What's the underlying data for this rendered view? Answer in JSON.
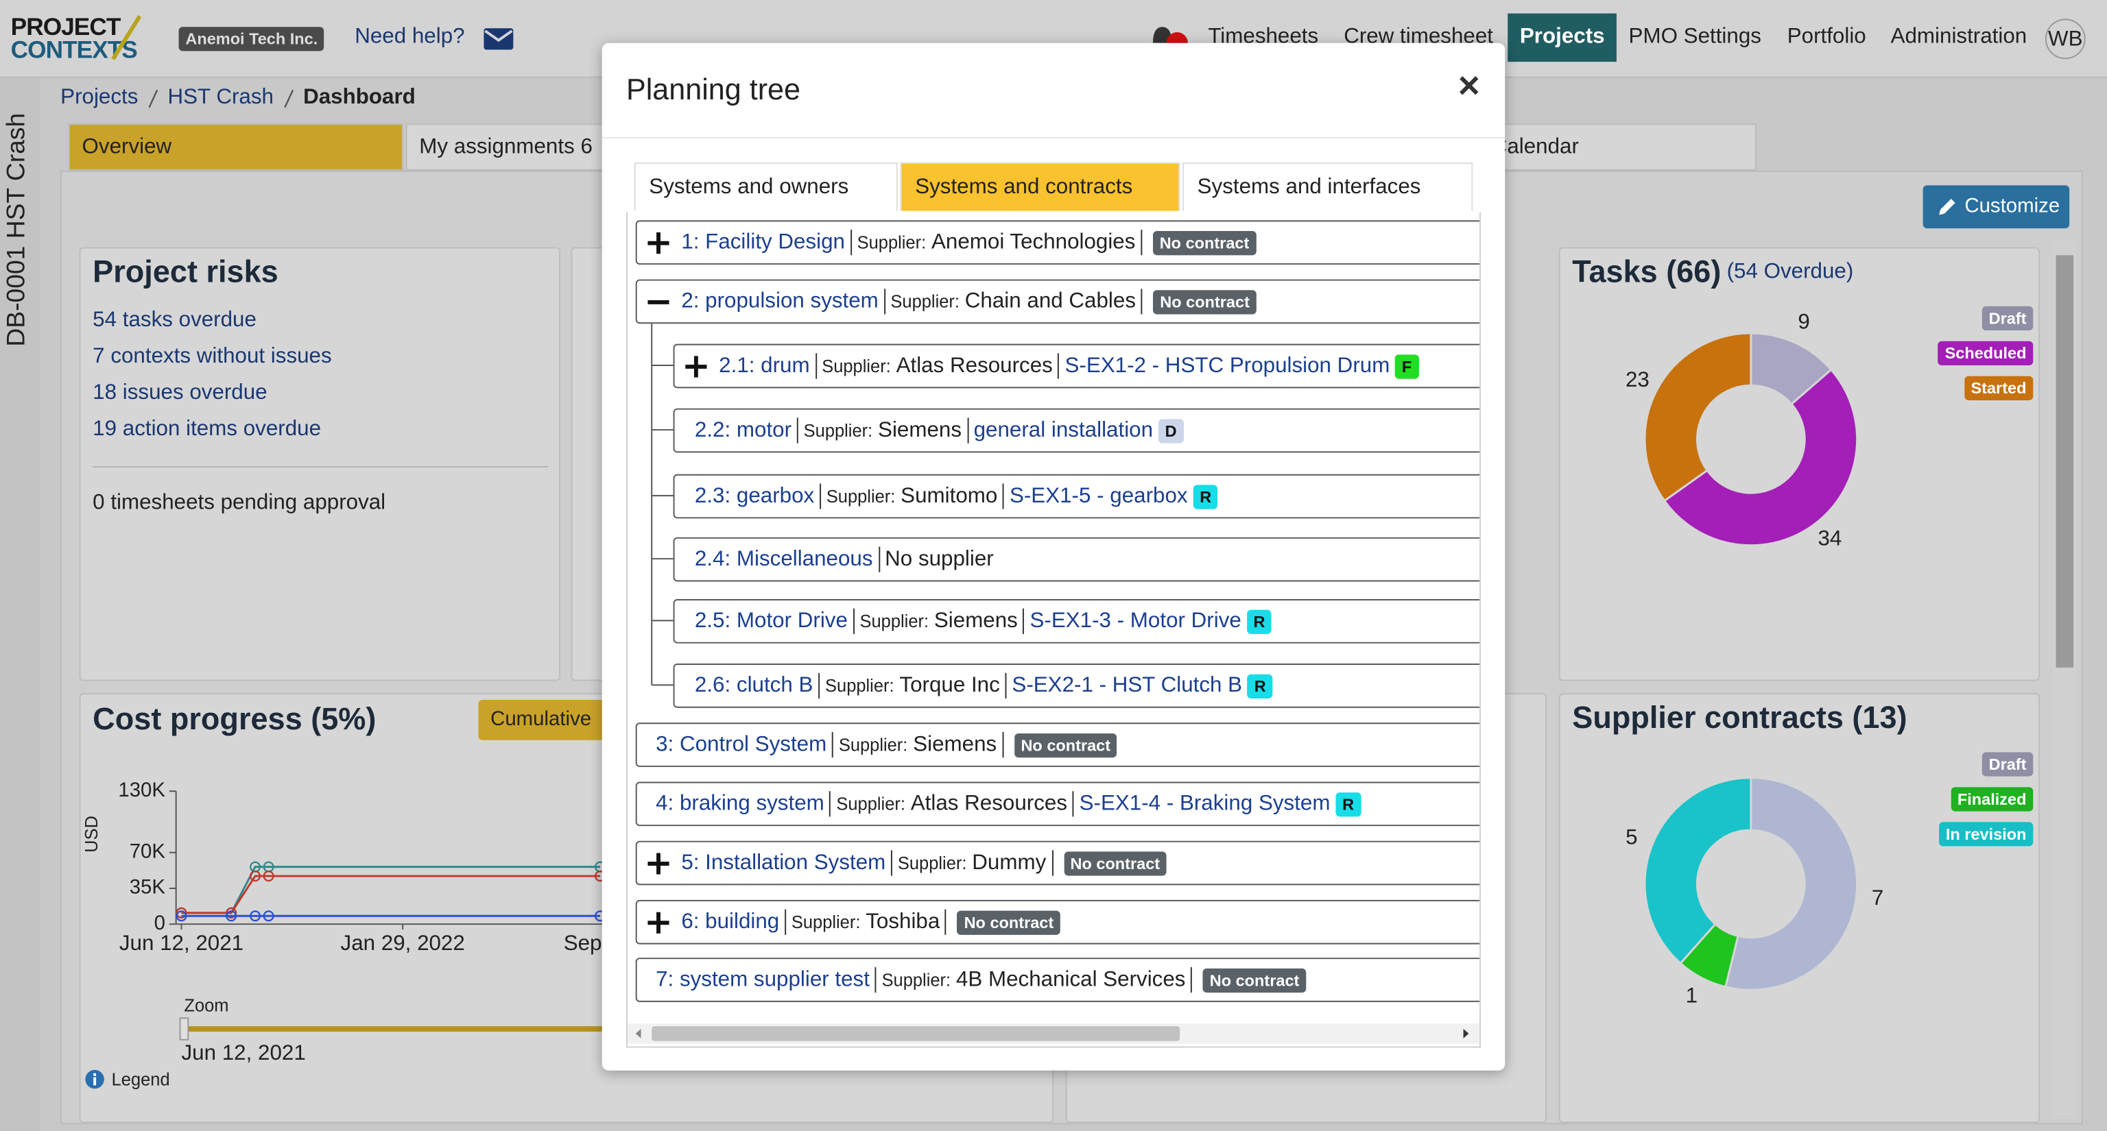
{
  "header": {
    "logo_top": "PROJECT",
    "logo_bottom": "CONTEXTS",
    "company": "Anemoi Tech Inc.",
    "help": "Need help?",
    "nav": [
      "Timesheets",
      "Crew timesheet",
      "Projects",
      "PMO Settings",
      "Portfolio",
      "Administration"
    ],
    "active_nav": 2,
    "user": "WB"
  },
  "sidebar": {
    "project": "DB-0001 HST Crash"
  },
  "breadcrumb": [
    "Projects",
    "HST Crash",
    "Dashboard"
  ],
  "tabs": [
    "Overview",
    "My assignments 6",
    "Calendar"
  ],
  "customize": "Customize",
  "project_risks": {
    "title": "Project risks",
    "links": [
      "54 tasks overdue",
      "7 contexts without issues",
      "18 issues overdue",
      "19 action items overdue"
    ],
    "timesheets": "0 timesheets pending approval"
  },
  "cost_panel": {
    "button": "Cumulative",
    "zoom_label": "Zoom",
    "zoom_start": "Jun 12, 2021",
    "legend": "Legend"
  },
  "chart_data": [
    {
      "type": "line",
      "title": "Cost progress (5%)",
      "ylabel": "USD",
      "x": [
        "2021-06-12",
        "2021-08-03",
        "2021-08-28",
        "2021-09-11",
        "2022-08-23"
      ],
      "xlim": [
        "2021-06-12",
        "2023-01-01"
      ],
      "xticks": [
        {
          "value": "2021-06-12",
          "label": "Jun 12, 2021"
        },
        {
          "value": "2022-01-29",
          "label": "Jan 29, 2022"
        },
        {
          "value": "2022-09-17",
          "label": "Sep"
        }
      ],
      "ylim": [
        0,
        130000
      ],
      "yticks": [
        0,
        {
          "value": 35000,
          "label": "35K"
        },
        {
          "value": 70000,
          "label": "70K"
        },
        {
          "value": 130000,
          "label": "130K"
        }
      ],
      "series": [
        {
          "color": "#2f8a8c",
          "values": [
            11000,
            11000,
            56000,
            56000,
            56000
          ]
        },
        {
          "color": "#c0392b",
          "values": [
            11000,
            11000,
            47000,
            47000,
            47000
          ]
        },
        {
          "color": "#2b50d8",
          "values": [
            8000,
            8000,
            8000,
            8000,
            8000
          ]
        }
      ]
    },
    {
      "type": "donut",
      "title": "Tasks (66)",
      "subtitle": "(54 Overdue)",
      "categories": [
        "Draft",
        "Scheduled",
        "Started"
      ],
      "values": [
        9,
        34,
        23
      ],
      "colors": [
        "#a9a6c4",
        "#a31fb7",
        "#c7720f"
      ],
      "legend_colors": [
        "#8e8fa5",
        "#a31fb7",
        "#c7720f"
      ]
    },
    {
      "type": "donut",
      "title": "Supplier contracts (13)",
      "categories": [
        "Draft",
        "Finalized",
        "In revision"
      ],
      "values": [
        7,
        1,
        5
      ],
      "colors": [
        "#aeb6d2",
        "#1fc41f",
        "#19c3c9"
      ],
      "legend_colors": [
        "#8e8fa5",
        "#1fb11f",
        "#17bec6"
      ]
    }
  ],
  "modal": {
    "title": "Planning tree",
    "close": "×",
    "tabs": [
      "Systems and owners",
      "Systems and contracts",
      "Systems and interfaces"
    ],
    "active_tab": 1,
    "tree": [
      {
        "label": "1: Facility Design",
        "level": 0,
        "expander": "collapsed",
        "supplier_prefix": "Supplier:",
        "supplier": "Anemoi Technologies",
        "no_contract": "No contract"
      },
      {
        "label": "2: propulsion system",
        "level": 0,
        "expander": "expanded",
        "supplier_prefix": "Supplier:",
        "supplier": "Chain and Cables",
        "no_contract": "No contract"
      },
      {
        "label": "2.1: drum",
        "level": 1,
        "expander": "collapsed",
        "supplier_prefix": "Supplier:",
        "supplier": "Atlas Resources",
        "contract": "S-EX1-2 - HSTC Propulsion Drum",
        "status": "F"
      },
      {
        "label": "2.2: motor",
        "level": 1,
        "supplier_prefix": "Supplier:",
        "supplier": "Siemens",
        "contract": "general installation",
        "status": "D"
      },
      {
        "label": "2.3: gearbox",
        "level": 1,
        "supplier_prefix": "Supplier:",
        "supplier": "Sumitomo",
        "contract": "S-EX1-5 - gearbox",
        "status": "R"
      },
      {
        "label": "2.4: Miscellaneous",
        "level": 1,
        "supplier": "No supplier"
      },
      {
        "label": "2.5: Motor Drive",
        "level": 1,
        "supplier_prefix": "Supplier:",
        "supplier": "Siemens",
        "contract": "S-EX1-3 - Motor Drive",
        "status": "R"
      },
      {
        "label": "2.6: clutch B",
        "level": 1,
        "supplier_prefix": "Supplier:",
        "supplier": "Torque Inc",
        "contract": "S-EX2-1 - HST Clutch B",
        "status": "R"
      },
      {
        "label": "3: Control System",
        "level": 0,
        "supplier_prefix": "Supplier:",
        "supplier": "Siemens",
        "no_contract": "No contract"
      },
      {
        "label": "4: braking system",
        "level": 0,
        "supplier_prefix": "Supplier:",
        "supplier": "Atlas Resources",
        "contract": "S-EX1-4 - Braking System",
        "status": "R"
      },
      {
        "label": "5: Installation System",
        "level": 0,
        "expander": "collapsed",
        "supplier_prefix": "Supplier:",
        "supplier": "Dummy",
        "no_contract": "No contract"
      },
      {
        "label": "6: building",
        "level": 0,
        "expander": "collapsed",
        "supplier_prefix": "Supplier:",
        "supplier": "Toshiba",
        "no_contract": "No contract"
      },
      {
        "label": "7: system supplier test",
        "level": 0,
        "supplier_prefix": "Supplier:",
        "supplier": "4B Mechanical Services",
        "no_contract": "No contract"
      }
    ],
    "status_colors": {
      "F": "#22dd22",
      "D": "#cdd5ea",
      "R": "#17dde8"
    }
  }
}
